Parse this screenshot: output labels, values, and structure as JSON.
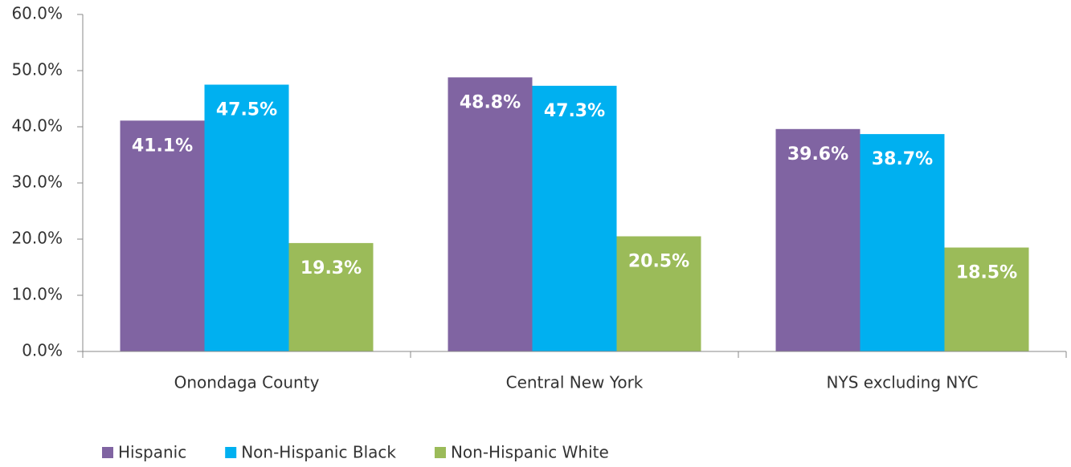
{
  "chart_data": {
    "type": "bar",
    "categories": [
      "Onondaga County",
      "Central New York",
      "NYS excluding NYC"
    ],
    "series": [
      {
        "name": "Hispanic",
        "color": "#8064a2",
        "values": [
          41.1,
          48.8,
          39.6
        ],
        "value_labels": [
          "41.1%",
          "48.8%",
          "39.6%"
        ]
      },
      {
        "name": "Non-Hispanic Black",
        "color": "#00b0f0",
        "values": [
          47.5,
          47.3,
          38.7
        ],
        "value_labels": [
          "47.5%",
          "47.3%",
          "38.7%"
        ]
      },
      {
        "name": "Non-Hispanic White",
        "color": "#9bbb59",
        "values": [
          19.3,
          20.5,
          18.5
        ],
        "value_labels": [
          "19.3%",
          "20.5%",
          "18.5%"
        ]
      }
    ],
    "ylim": [
      0,
      60
    ],
    "yticks": [
      {
        "value": 0,
        "label": "0.0%"
      },
      {
        "value": 10,
        "label": "10.0%"
      },
      {
        "value": 20,
        "label": "20.0%"
      },
      {
        "value": 30,
        "label": "30.0%"
      },
      {
        "value": 40,
        "label": "40.0%"
      },
      {
        "value": 50,
        "label": "50.0%"
      },
      {
        "value": 60,
        "label": "60.0%"
      }
    ],
    "legend": "bottom-left"
  }
}
